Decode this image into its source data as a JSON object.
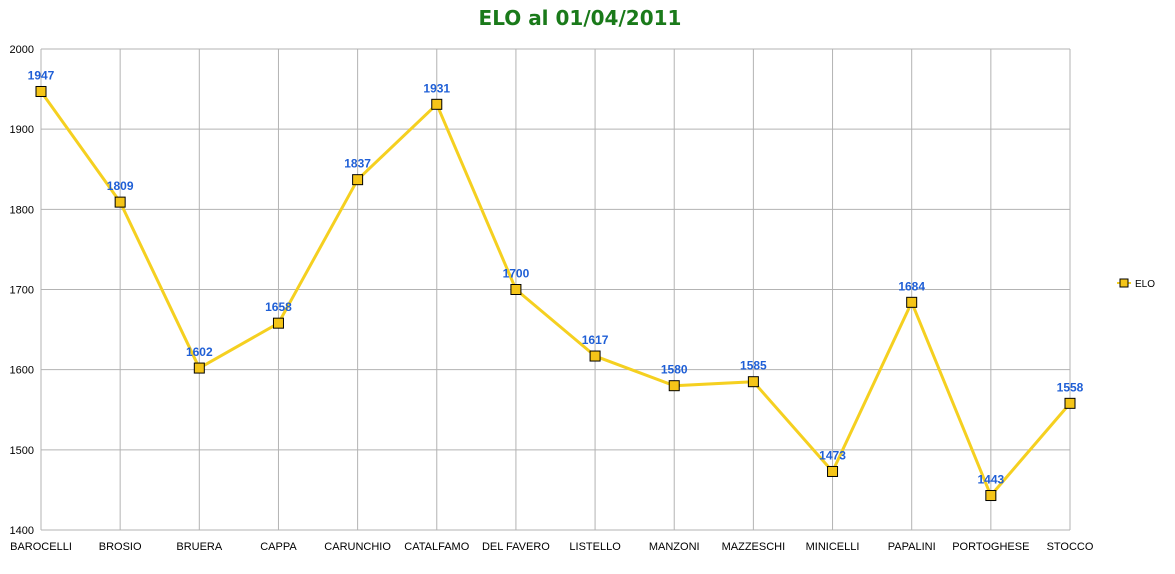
{
  "chart_data": {
    "type": "line",
    "title": "ELO al 01/04/2011",
    "xlabel": "",
    "ylabel": "",
    "categories": [
      "BAROCELLI",
      "BROSIO",
      "BRUERA",
      "CAPPA",
      "CARUNCHIO",
      "CATALFAMO",
      "DEL FAVERO",
      "LISTELLO",
      "MANZONI",
      "MAZZESCHI",
      "MINICELLI",
      "PAPALINI",
      "PORTOGHESE",
      "STOCCO"
    ],
    "series": [
      {
        "name": "ELO",
        "values": [
          1947,
          1809,
          1602,
          1658,
          1837,
          1931,
          1700,
          1617,
          1580,
          1585,
          1473,
          1684,
          1443,
          1558
        ],
        "color": "#F5D020",
        "marker": "square",
        "marker_fill": "#F5C518",
        "marker_stroke": "#000000"
      }
    ],
    "ylim": [
      1400,
      2000
    ],
    "yticks": [
      1400,
      1500,
      1600,
      1700,
      1800,
      1900,
      2000
    ],
    "grid": true,
    "legend_position": "right",
    "data_labels": true,
    "colors": {
      "title": "#1A7A1A",
      "data_label": "#1F5FD6",
      "grid": "#B3B3B3"
    }
  }
}
